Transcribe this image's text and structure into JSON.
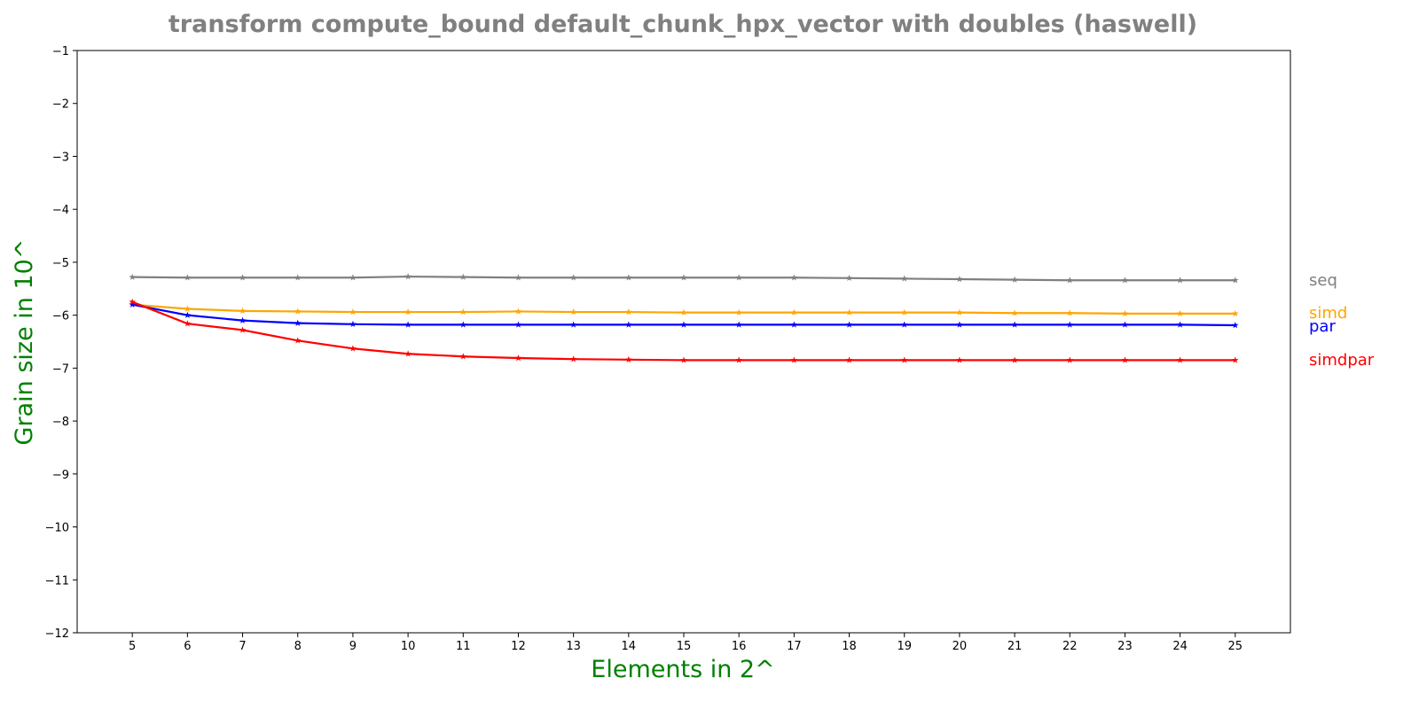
{
  "chart_data": {
    "type": "line",
    "title": "transform compute_bound default_chunk_hpx_vector with doubles  (haswell)",
    "xlabel": "Elements in 2^",
    "ylabel": "Grain size in 10^",
    "xlim": [
      4,
      26
    ],
    "ylim": [
      -12,
      -1
    ],
    "x": [
      5,
      6,
      7,
      8,
      9,
      10,
      11,
      12,
      13,
      14,
      15,
      16,
      17,
      18,
      19,
      20,
      21,
      22,
      23,
      24,
      25
    ],
    "yticks": [
      "−12",
      "−11",
      "−10",
      "−9",
      "−8",
      "−7",
      "−6",
      "−5",
      "−4",
      "−3",
      "−2",
      "−1"
    ],
    "xticks": [
      "5",
      "6",
      "7",
      "8",
      "9",
      "10",
      "11",
      "12",
      "13",
      "14",
      "15",
      "16",
      "17",
      "18",
      "19",
      "20",
      "21",
      "22",
      "23",
      "24",
      "25"
    ],
    "grid": false,
    "legend": "right-side inline labels",
    "marker": "star",
    "series": [
      {
        "name": "seq",
        "color": "#808080",
        "values": [
          -5.28,
          -5.29,
          -5.29,
          -5.29,
          -5.29,
          -5.27,
          -5.28,
          -5.29,
          -5.29,
          -5.29,
          -5.29,
          -5.29,
          -5.29,
          -5.3,
          -5.31,
          -5.32,
          -5.33,
          -5.34,
          -5.34,
          -5.34,
          -5.34
        ]
      },
      {
        "name": "simd",
        "color": "#FFA500",
        "values": [
          -5.8,
          -5.88,
          -5.92,
          -5.93,
          -5.94,
          -5.94,
          -5.94,
          -5.93,
          -5.94,
          -5.94,
          -5.95,
          -5.95,
          -5.95,
          -5.95,
          -5.95,
          -5.95,
          -5.96,
          -5.96,
          -5.97,
          -5.97,
          -5.97
        ]
      },
      {
        "name": "par",
        "color": "#0000FF",
        "values": [
          -5.8,
          -6.0,
          -6.1,
          -6.15,
          -6.17,
          -6.18,
          -6.18,
          -6.18,
          -6.18,
          -6.18,
          -6.18,
          -6.18,
          -6.18,
          -6.18,
          -6.18,
          -6.18,
          -6.18,
          -6.18,
          -6.18,
          -6.18,
          -6.19
        ]
      },
      {
        "name": "simdpar",
        "color": "#FF0000",
        "values": [
          -5.75,
          -6.16,
          -6.28,
          -6.48,
          -6.63,
          -6.73,
          -6.78,
          -6.81,
          -6.83,
          -6.84,
          -6.85,
          -6.85,
          -6.85,
          -6.85,
          -6.85,
          -6.85,
          -6.85,
          -6.85,
          -6.85,
          -6.85,
          -6.85
        ]
      }
    ]
  },
  "colors": {
    "title": "#808080",
    "axis_label": "#008000"
  }
}
